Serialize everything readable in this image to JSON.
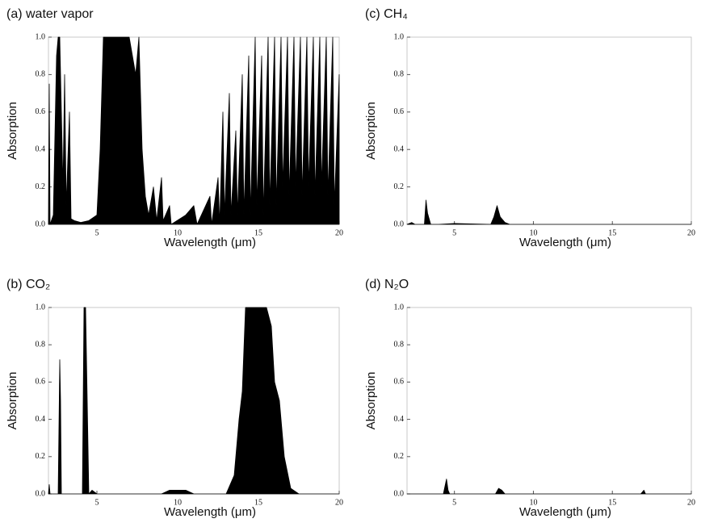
{
  "chart_data": [
    {
      "type": "area",
      "title": "(a) water vapor",
      "x_label": "Wavelength (μm)",
      "y_label": "Absorption",
      "xlim": [
        2,
        20
      ],
      "ylim": [
        0,
        1
      ],
      "xticks": [
        5,
        10,
        15,
        20
      ],
      "yticks": [
        {
          "value": 0,
          "label": "0.0"
        },
        0.2,
        0.4,
        0.6,
        0.8,
        {
          "value": 1,
          "label": "1.0"
        }
      ],
      "color": "#000000",
      "x": [
        2.0,
        2.05,
        2.1,
        2.3,
        2.5,
        2.6,
        2.7,
        2.8,
        2.9,
        3.0,
        3.1,
        3.3,
        3.4,
        3.6,
        4.0,
        4.5,
        5.0,
        5.2,
        5.4,
        6.0,
        6.5,
        7.0,
        7.4,
        7.6,
        7.8,
        8.0,
        8.2,
        8.5,
        8.7,
        9.0,
        9.1,
        9.5,
        9.6,
        10.5,
        11,
        11.2,
        12,
        12.1,
        12.5,
        12.6,
        12.8,
        12.9,
        13.2,
        13.3,
        13.6,
        13.7,
        14,
        14.1,
        14.4,
        14.5,
        14.8,
        14.9,
        15.2,
        15.3,
        15.6,
        15.7,
        16,
        16.1,
        16.4,
        16.5,
        16.8,
        16.9,
        17.2,
        17.3,
        17.6,
        17.7,
        18,
        18.1,
        18.4,
        18.5,
        18.8,
        18.9,
        19.2,
        19.3,
        19.6,
        19.7,
        20
      ],
      "values": [
        0,
        0.75,
        0,
        0.05,
        0.9,
        1.0,
        1.0,
        0.6,
        0.2,
        0.8,
        0.1,
        0.6,
        0.03,
        0.02,
        0.01,
        0.02,
        0.05,
        0.4,
        1.0,
        1.0,
        1.0,
        1.0,
        0.8,
        1.0,
        0.4,
        0.15,
        0.05,
        0.2,
        0.02,
        0.25,
        0.02,
        0.1,
        0,
        0.05,
        0.1,
        0,
        0.15,
        0,
        0.25,
        0,
        0.6,
        0.05,
        0.7,
        0.05,
        0.5,
        0.05,
        0.8,
        0.05,
        0.9,
        0.05,
        1.0,
        0.1,
        0.9,
        0.05,
        1.0,
        0.1,
        1.0,
        0.1,
        1.0,
        0.2,
        1.0,
        0.15,
        1.0,
        0.2,
        1.0,
        0.15,
        1.0,
        0.2,
        1.0,
        0.15,
        1.0,
        0.2,
        1.0,
        0.15,
        1.0,
        0.1,
        0.8
      ]
    },
    {
      "type": "area",
      "title": "(b) CO₂",
      "x_label": "Wavelength (μm)",
      "y_label": "Absorption",
      "xlim": [
        2,
        20
      ],
      "ylim": [
        0,
        1
      ],
      "xticks": [
        5,
        10,
        15,
        20
      ],
      "yticks": [
        {
          "value": 0,
          "label": "0.0"
        },
        0.2,
        0.4,
        0.6,
        0.8,
        {
          "value": 1,
          "label": "1.0"
        }
      ],
      "color": "#000000",
      "x": [
        2,
        2.05,
        2.1,
        2.6,
        2.7,
        2.75,
        2.8,
        4.1,
        4.2,
        4.3,
        4.4,
        4.5,
        4.7,
        5,
        9,
        9.5,
        10.5,
        11,
        13,
        13.5,
        13.8,
        14,
        14.2,
        15.5,
        15.8,
        16,
        16.3,
        16.6,
        17,
        17.5,
        20
      ],
      "values": [
        0,
        0.05,
        0,
        0,
        0.72,
        0.5,
        0,
        0,
        1.0,
        1.0,
        0.5,
        0,
        0.02,
        0,
        0,
        0.02,
        0.02,
        0,
        0,
        0.1,
        0.4,
        0.55,
        1.0,
        1.0,
        0.9,
        0.6,
        0.5,
        0.2,
        0.03,
        0,
        0
      ]
    },
    {
      "type": "area",
      "title": "(c) CH₄",
      "x_label": "Wavelength (μm)",
      "y_label": "Absorption",
      "xlim": [
        2,
        20
      ],
      "ylim": [
        0,
        1
      ],
      "xticks": [
        5,
        10,
        15,
        20
      ],
      "yticks": [
        {
          "value": 0,
          "label": "0.0"
        },
        0.2,
        0.4,
        0.6,
        0.8,
        {
          "value": 1,
          "label": "1.0"
        }
      ],
      "color": "#000000",
      "x": [
        2,
        2.3,
        2.5,
        3.1,
        3.2,
        3.3,
        3.5,
        4,
        5,
        7.3,
        7.5,
        7.7,
        7.9,
        8.2,
        8.5,
        20
      ],
      "values": [
        0,
        0.01,
        0,
        0,
        0.13,
        0.06,
        0,
        0,
        0.005,
        0,
        0.04,
        0.1,
        0.04,
        0.01,
        0,
        0
      ]
    },
    {
      "type": "area",
      "title": "(d) N₂O",
      "x_label": "Wavelength (μm)",
      "y_label": "Absorption",
      "xlim": [
        2,
        20
      ],
      "ylim": [
        0,
        1
      ],
      "xticks": [
        5,
        10,
        15,
        20
      ],
      "yticks": [
        {
          "value": 0,
          "label": "0.0"
        },
        0.2,
        0.4,
        0.6,
        0.8,
        {
          "value": 1,
          "label": "1.0"
        }
      ],
      "color": "#000000",
      "x": [
        2,
        4.3,
        4.5,
        4.6,
        4.7,
        7.6,
        7.8,
        8,
        8.2,
        16.8,
        17,
        17.1,
        20
      ],
      "values": [
        0,
        0,
        0.08,
        0.02,
        0,
        0,
        0.03,
        0.02,
        0,
        0,
        0.02,
        0,
        0
      ]
    }
  ]
}
